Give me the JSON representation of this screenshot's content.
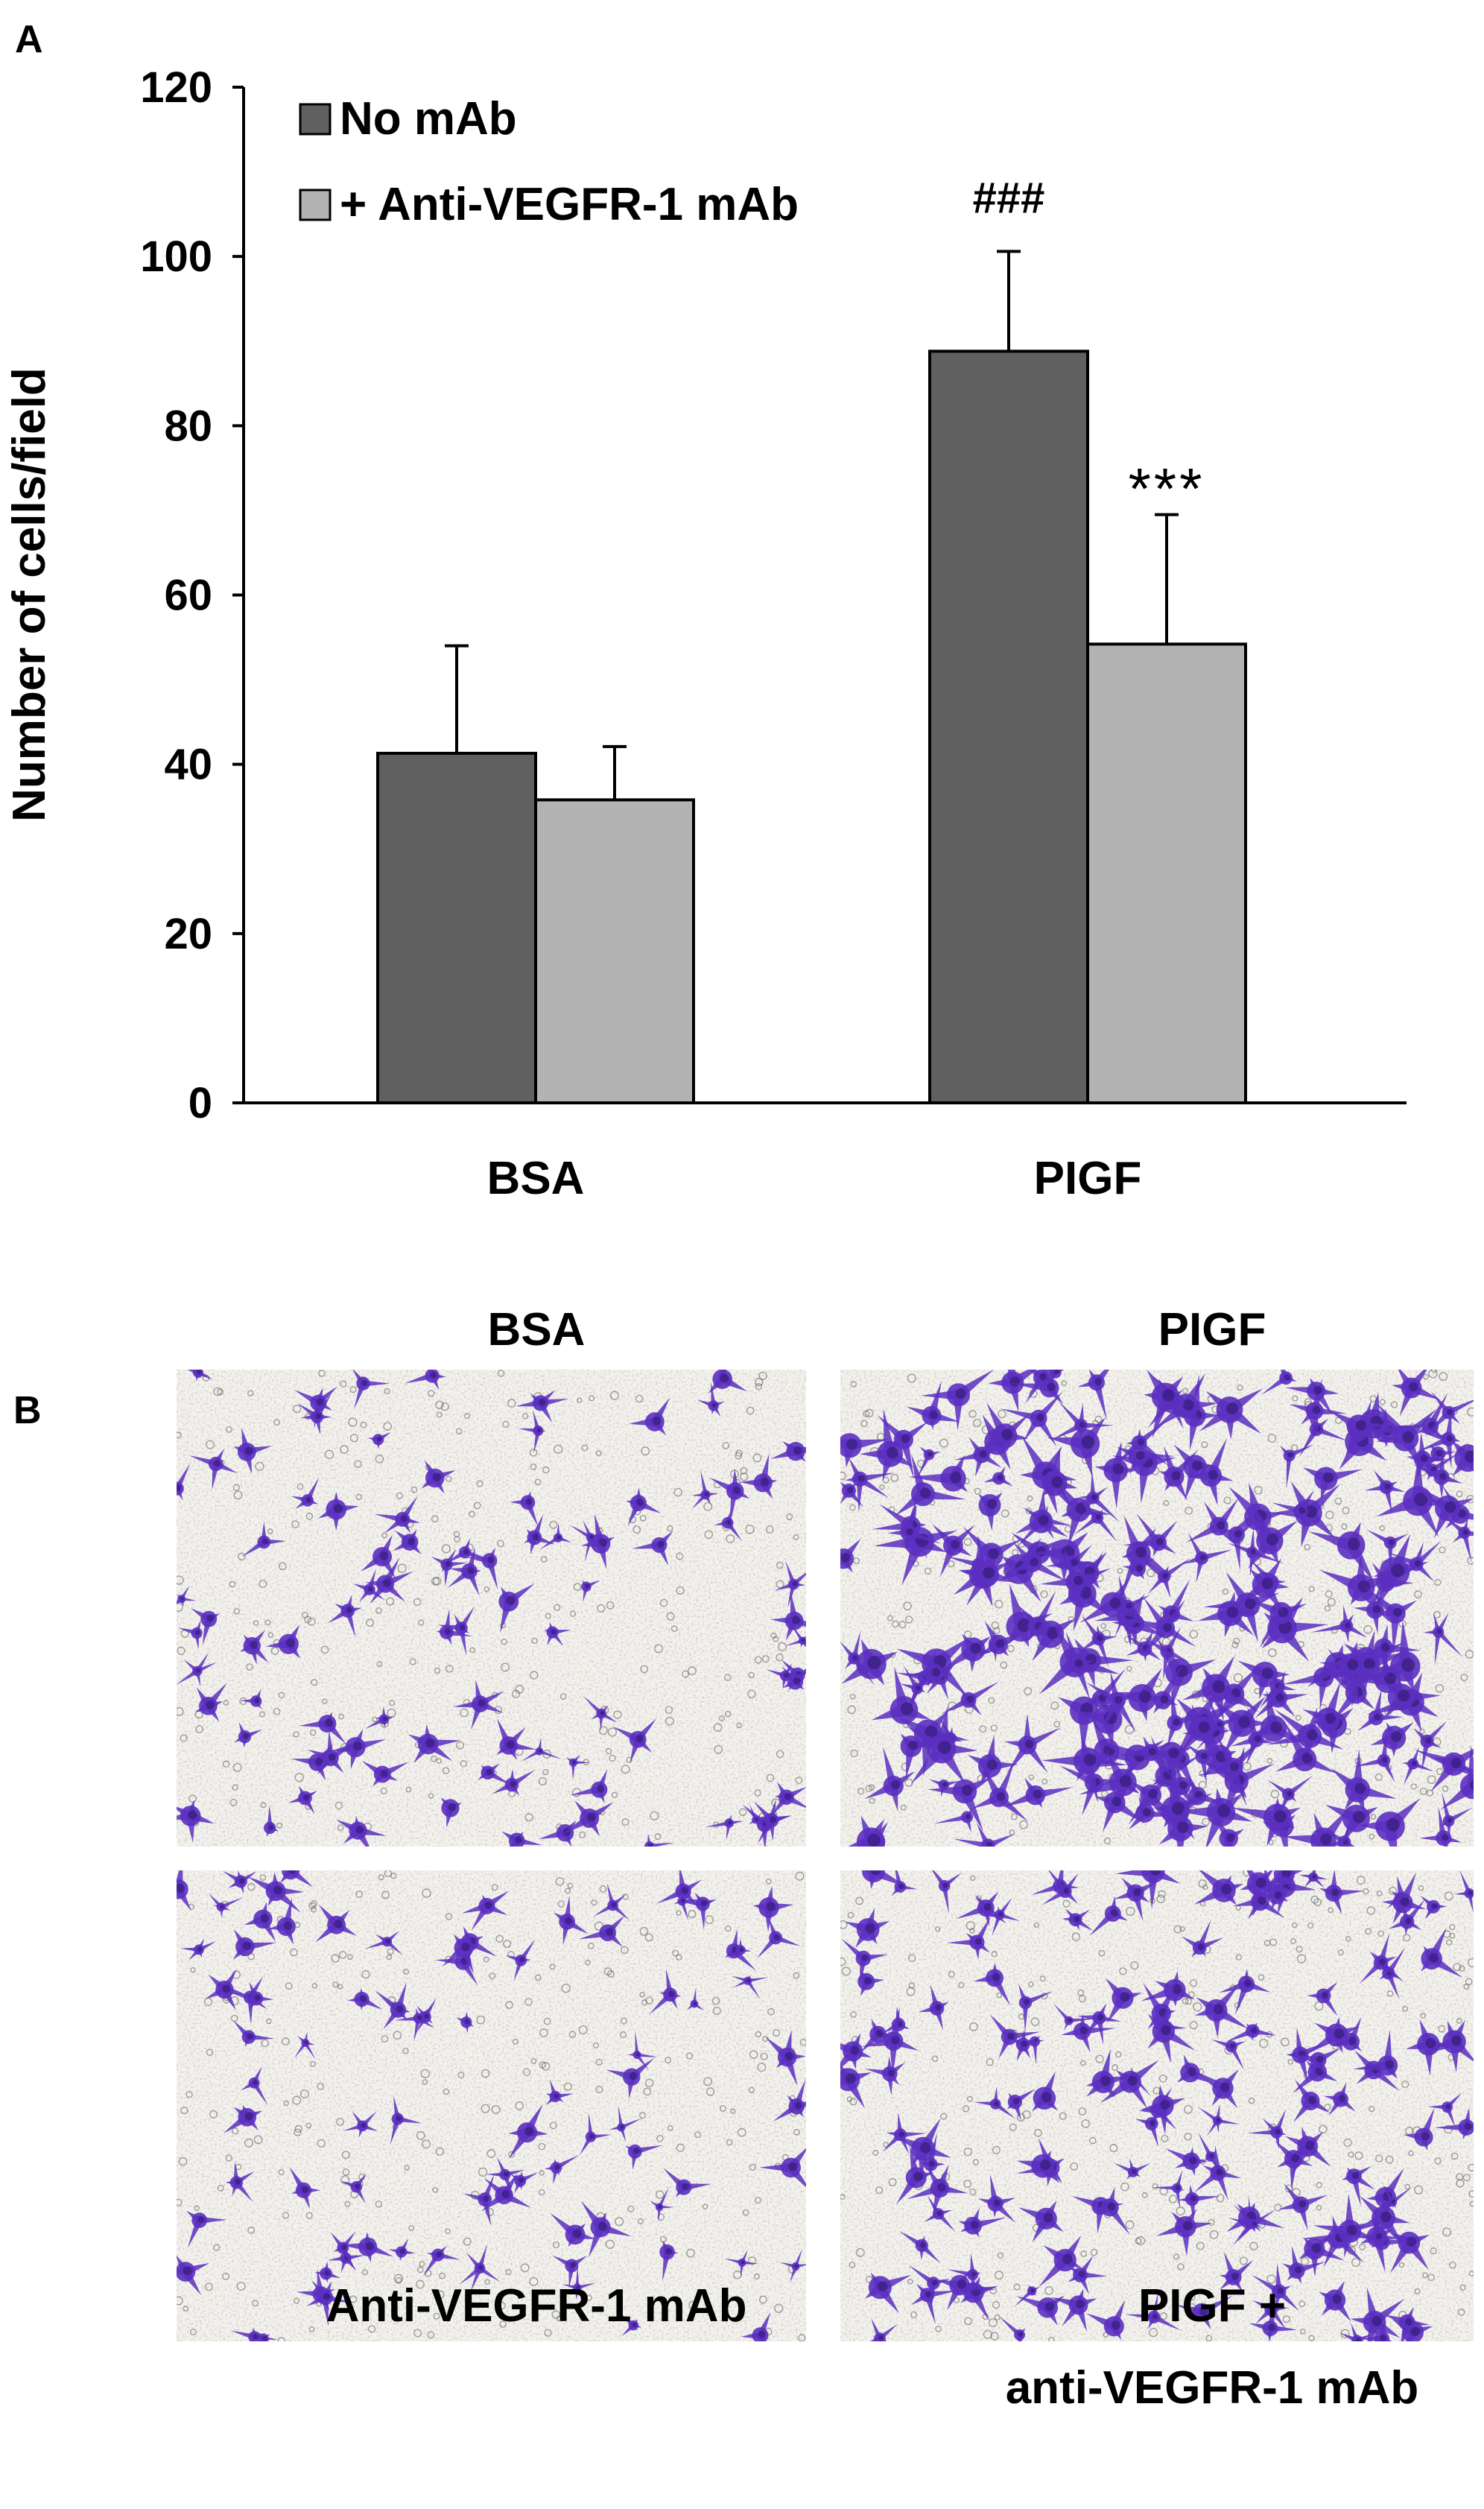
{
  "panel_a_label": "A",
  "panel_b_label": "B",
  "chart_data": {
    "type": "bar",
    "categories": [
      "BSA",
      "PIGF"
    ],
    "series": [
      {
        "name": "No mAb",
        "values": [
          41.3,
          88.8
        ],
        "errors": [
          12.7,
          11.8
        ],
        "color": "#606060"
      },
      {
        "name": "+ Anti-VEGFR-1 mAb",
        "values": [
          35.8,
          54.2
        ],
        "errors": [
          6.3,
          15.3
        ],
        "color": "#b3b3b3"
      }
    ],
    "ylabel": "Number of cells/field",
    "xlabel": "",
    "ylim": [
      0,
      120
    ],
    "yticks": [
      0,
      20,
      40,
      60,
      80,
      100,
      120
    ],
    "grid": false,
    "legend": "top-left",
    "annotations": [
      {
        "text": "###",
        "category": "PIGF",
        "series": "No mAb"
      },
      {
        "text": "***",
        "category": "PIGF",
        "series": "+ Anti-VEGFR-1 mAb"
      }
    ]
  },
  "micrographs": {
    "top_titles": [
      "BSA",
      "PIGF"
    ],
    "bottom_captions": [
      "Anti-VEGFR-1 mAb",
      "PIGF +",
      "anti-VEGFR-1 mAb"
    ],
    "stain_color": "#5b2fc0"
  }
}
